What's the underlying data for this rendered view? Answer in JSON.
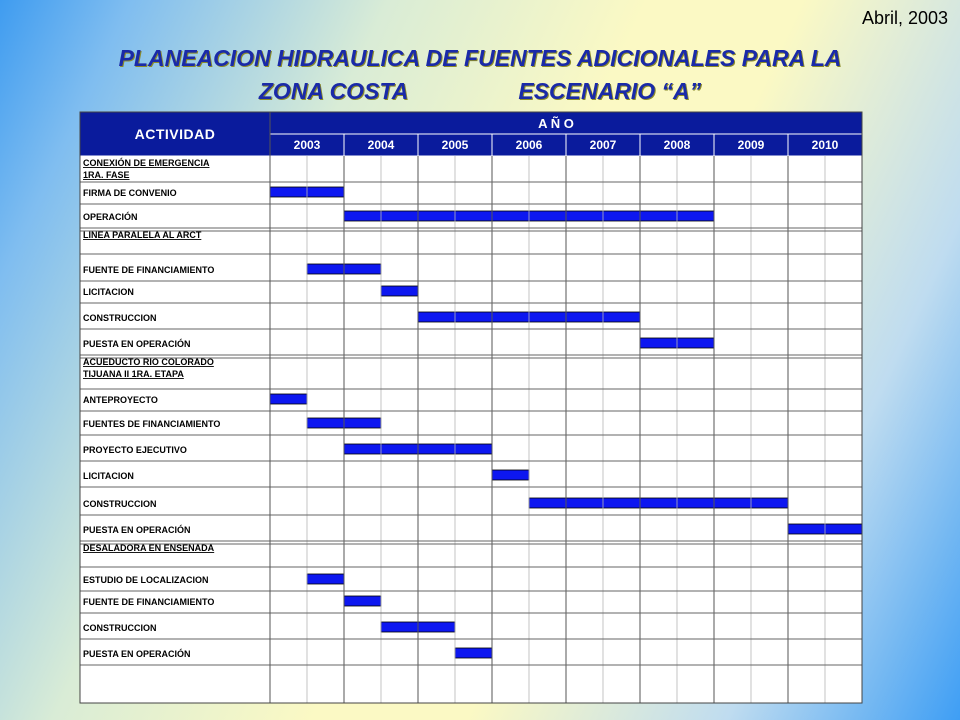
{
  "date_label": "Abril, 2003",
  "title_line1": "PLANEACION HIDRAULICA DE FUENTES ADICIONALES PARA LA",
  "title_line2_left": "ZONA COSTA",
  "title_line2_right": "ESCENARIO “A”",
  "colors": {
    "header": "#0a1b9c",
    "bar": "#0d17f0",
    "grid": "#7d7d7d"
  },
  "chart_data": {
    "type": "gantt",
    "header_activity": "ACTIVIDAD",
    "header_year": "A Ñ O",
    "years": [
      "2003",
      "2004",
      "2005",
      "2006",
      "2007",
      "2008",
      "2009",
      "2010"
    ],
    "groups": [
      {
        "title_lines": [
          "CONEXIÓN DE EMERGENCIA",
          "1RA. FASE"
        ],
        "tasks": [
          {
            "label": "FIRMA DE CONVENIO",
            "start": 2003.0,
            "end": 2004.0
          },
          {
            "label": "OPERACIÓN",
            "start": 2004.0,
            "end": 2009.0
          }
        ]
      },
      {
        "title_lines": [
          "LINEA PARALELA AL ARCT"
        ],
        "tasks": [
          {
            "label": "FUENTE DE FINANCIAMIENTO",
            "start": 2003.5,
            "end": 2004.5
          },
          {
            "label": "LICITACION",
            "start": 2004.5,
            "end": 2005.0
          },
          {
            "label": "CONSTRUCCION",
            "start": 2005.0,
            "end": 2008.0
          },
          {
            "label": "PUESTA EN OPERACIÓN",
            "start": 2008.0,
            "end": 2009.0
          }
        ]
      },
      {
        "title_lines": [
          "ACUEDUCTO RIO COLORADO",
          "TIJUANA II 1RA. ETAPA"
        ],
        "tasks": [
          {
            "label": "ANTEPROYECTO",
            "start": 2003.0,
            "end": 2003.5
          },
          {
            "label": "FUENTES DE FINANCIAMIENTO",
            "start": 2003.5,
            "end": 2004.5
          },
          {
            "label": "PROYECTO EJECUTIVO",
            "start": 2004.0,
            "end": 2006.0
          },
          {
            "label": "LICITACION",
            "start": 2006.0,
            "end": 2006.5
          },
          {
            "label": "CONSTRUCCION",
            "start": 2006.5,
            "end": 2010.0
          },
          {
            "label": "PUESTA EN OPERACIÓN",
            "start": 2010.0,
            "end": 2011.0
          }
        ]
      },
      {
        "title_lines": [
          "DESALADORA EN ENSENADA"
        ],
        "tasks": [
          {
            "label": "ESTUDIO DE LOCALIZACION",
            "start": 2003.5,
            "end": 2004.0
          },
          {
            "label": "FUENTE DE FINANCIAMIENTO",
            "start": 2004.0,
            "end": 2004.5
          },
          {
            "label": "CONSTRUCCION",
            "start": 2004.5,
            "end": 2005.5
          },
          {
            "label": "PUESTA EN OPERACIÓN",
            "start": 2005.5,
            "end": 2006.0
          }
        ]
      }
    ]
  }
}
